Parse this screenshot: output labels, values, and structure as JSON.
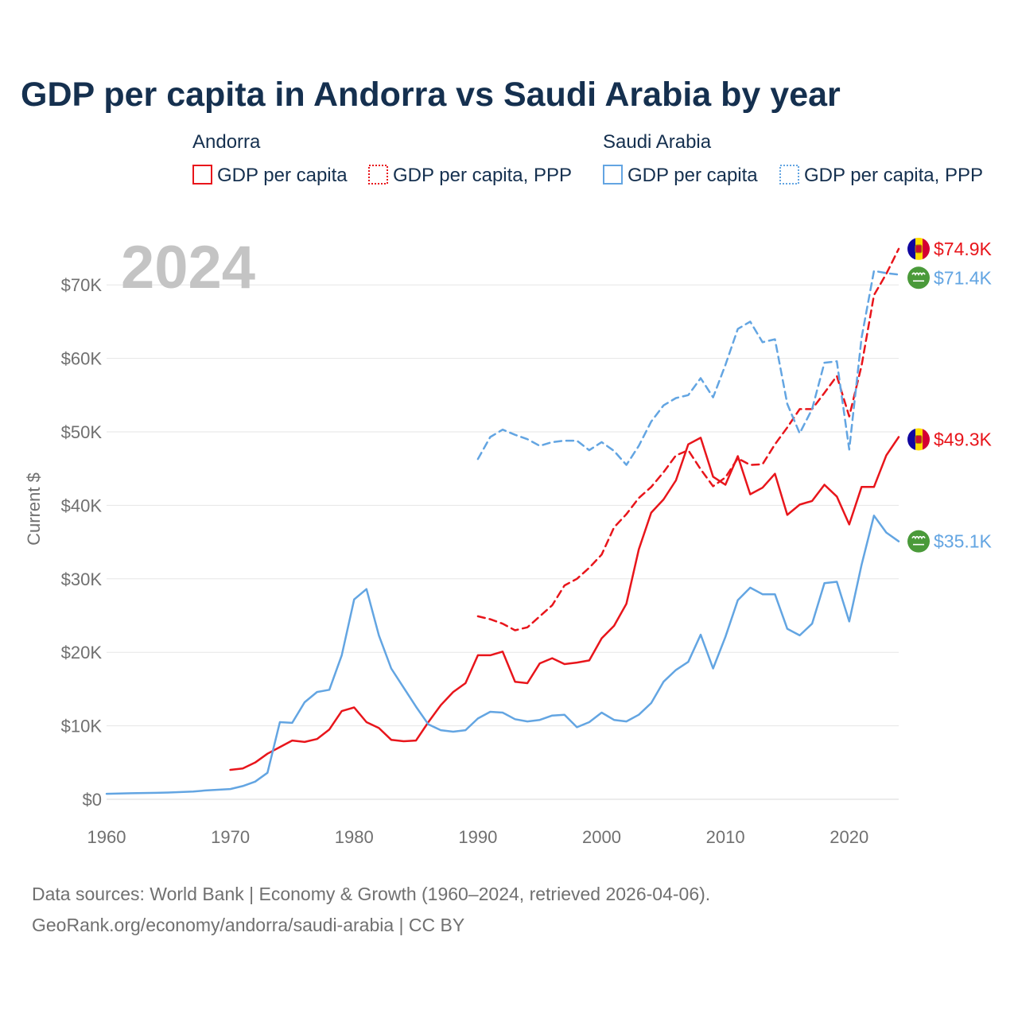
{
  "title": "GDP per capita in Andorra vs Saudi Arabia by year",
  "year_label": "2024",
  "colors": {
    "andorra": "#e8151b",
    "saudi": "#63a5e2",
    "grid": "#e6e6e6",
    "text": "#15304f",
    "axis_text": "#707070"
  },
  "legend": {
    "groups": [
      {
        "name": "Andorra",
        "items": [
          "GDP per capita",
          "GDP per capita, PPP"
        ]
      },
      {
        "name": "Saudi Arabia",
        "items": [
          "GDP per capita",
          "GDP per capita, PPP"
        ]
      }
    ]
  },
  "end_labels": [
    {
      "text": "$74.9K",
      "country": "andorra",
      "flag_icon": "andorra-flag-icon"
    },
    {
      "text": "$71.4K",
      "country": "saudi",
      "flag_icon": "saudi-flag-icon"
    },
    {
      "text": "$49.3K",
      "country": "andorra",
      "flag_icon": "andorra-flag-icon"
    },
    {
      "text": "$35.1K",
      "country": "saudi",
      "flag_icon": "saudi-flag-icon"
    }
  ],
  "sources": {
    "line1": "Data sources: World Bank | Economy & Growth (1960–2024, retrieved 2026-04-06).",
    "line2": "GeoRank.org/economy/andorra/saudi-arabia | CC BY"
  },
  "chart_data": {
    "type": "line",
    "ylabel": "Current $",
    "xlim": [
      1960,
      2024
    ],
    "ylim": [
      0,
      75000
    ],
    "x_ticks": [
      1960,
      1970,
      1980,
      1990,
      2000,
      2010,
      2020
    ],
    "y_ticks": [
      {
        "value": 0,
        "label": "$0"
      },
      {
        "value": 10000,
        "label": "$10K"
      },
      {
        "value": 20000,
        "label": "$20K"
      },
      {
        "value": 30000,
        "label": "$30K"
      },
      {
        "value": 40000,
        "label": "$40K"
      },
      {
        "value": 50000,
        "label": "$50K"
      },
      {
        "value": 60000,
        "label": "$60K"
      },
      {
        "value": 70000,
        "label": "$70K"
      }
    ],
    "grid": true,
    "series": [
      {
        "name": "Andorra GDP per capita",
        "country": "andorra",
        "dashed": false,
        "start_year": 1970,
        "values": [
          4000,
          4200,
          5000,
          6200,
          7100,
          8000,
          7800,
          8200,
          9500,
          12000,
          12500,
          10500,
          9700,
          8100,
          7900,
          8000,
          10500,
          12800,
          14600,
          15800,
          19600,
          19600,
          20100,
          16000,
          15800,
          18500,
          19200,
          18400,
          18600,
          18900,
          21900,
          23600,
          26600,
          34000,
          39000,
          40800,
          43400,
          48300,
          49200,
          43900,
          42800,
          46700,
          41500,
          42400,
          44300,
          38700,
          40100,
          40600,
          42800,
          41200,
          37400,
          42500,
          42500,
          46800,
          49300
        ]
      },
      {
        "name": "Andorra GDP per capita, PPP",
        "country": "andorra",
        "dashed": true,
        "start_year": 1990,
        "values": [
          24900,
          24500,
          23900,
          23000,
          23400,
          24900,
          26400,
          29100,
          30000,
          31500,
          33300,
          37000,
          38800,
          41000,
          42500,
          44500,
          46800,
          47500,
          44900,
          42600,
          43800,
          46400,
          45500,
          45600,
          48300,
          50600,
          53100,
          53100,
          55300,
          57600,
          52100,
          59000,
          68600,
          71500,
          74900
        ]
      },
      {
        "name": "Saudi Arabia GDP per capita",
        "country": "saudi",
        "dashed": false,
        "start_year": 1960,
        "values": [
          750,
          780,
          820,
          850,
          880,
          920,
          980,
          1050,
          1200,
          1300,
          1400,
          1800,
          2400,
          3600,
          10500,
          10400,
          13200,
          14600,
          14900,
          19600,
          27200,
          28600,
          22300,
          17800,
          15200,
          12600,
          10200,
          9400,
          9200,
          9400,
          11000,
          11900,
          11800,
          10900,
          10600,
          10800,
          11400,
          11500,
          9800,
          10500,
          11800,
          10800,
          10600,
          11500,
          13100,
          16000,
          17600,
          18700,
          22400,
          17800,
          22100,
          27100,
          28800,
          27900,
          27900,
          23200,
          22300,
          23900,
          29400,
          29600,
          24200,
          31900,
          38600,
          36300,
          35100
        ]
      },
      {
        "name": "Saudi Arabia GDP per capita, PPP",
        "country": "saudi",
        "dashed": true,
        "start_year": 1990,
        "values": [
          46300,
          49300,
          50300,
          49600,
          49000,
          48100,
          48600,
          48800,
          48800,
          47500,
          48600,
          47400,
          45500,
          48100,
          51400,
          53600,
          54600,
          55000,
          57300,
          54700,
          59100,
          64000,
          65000,
          62200,
          62600,
          53800,
          49800,
          53100,
          59400,
          59600,
          47600,
          62800,
          71900,
          71600,
          71400
        ]
      }
    ]
  }
}
